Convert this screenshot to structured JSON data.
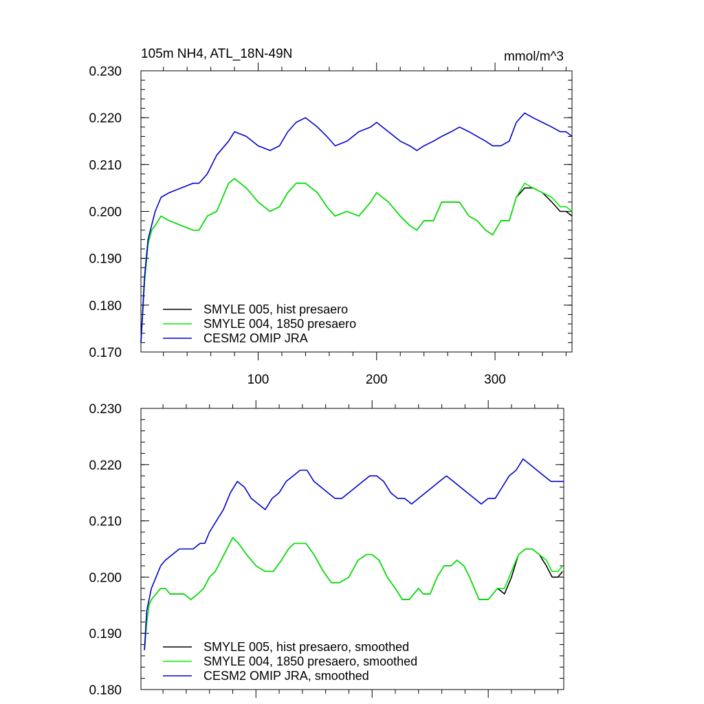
{
  "figure": {
    "title_left": "105m NH4, ATL_18N-49N",
    "title_right": "mmol/m^3"
  },
  "chart_data": [
    {
      "type": "line",
      "title": "105m NH4, ATL_18N-49N",
      "units": "mmol/m^3",
      "xlabel": "",
      "ylabel": "",
      "xlim": [
        1,
        365
      ],
      "ylim": [
        0.17,
        0.23
      ],
      "x_ticks": [
        100,
        200,
        300
      ],
      "x_tick_labels": [
        "100",
        "200",
        "300"
      ],
      "y_ticks": [
        0.17,
        0.18,
        0.19,
        0.2,
        0.21,
        0.22,
        0.23
      ],
      "y_tick_labels": [
        "0.170",
        "0.180",
        "0.190",
        "0.200",
        "0.210",
        "0.220",
        "0.230"
      ],
      "legend_position": "bottom-left",
      "grid": false,
      "series": [
        {
          "name": "SMYLE 005, hist presaero",
          "color": "#000000",
          "x": [
            1,
            4,
            7,
            10,
            13,
            18,
            25,
            35,
            45,
            50,
            57,
            65,
            75,
            80,
            90,
            100,
            110,
            118,
            125,
            132,
            140,
            150,
            158,
            165,
            175,
            185,
            195,
            200,
            210,
            220,
            228,
            234,
            240,
            248,
            255,
            263,
            270,
            278,
            285,
            292,
            298,
            305,
            312,
            318,
            325,
            332,
            340,
            348,
            355,
            360,
            365
          ],
          "values": [
            0.172,
            0.185,
            0.193,
            0.196,
            0.197,
            0.199,
            0.198,
            0.197,
            0.196,
            0.196,
            0.199,
            0.2,
            0.206,
            0.207,
            0.205,
            0.202,
            0.2,
            0.201,
            0.204,
            0.206,
            0.206,
            0.204,
            0.201,
            0.199,
            0.2,
            0.199,
            0.202,
            0.204,
            0.202,
            0.199,
            0.197,
            0.196,
            0.198,
            0.198,
            0.202,
            0.202,
            0.202,
            0.199,
            0.198,
            0.196,
            0.195,
            0.198,
            0.198,
            0.203,
            0.205,
            0.205,
            0.204,
            0.202,
            0.2,
            0.2,
            0.199
          ]
        },
        {
          "name": "SMYLE 004, 1850 presaero",
          "color": "#00ee00",
          "x": [
            1,
            4,
            7,
            10,
            13,
            18,
            25,
            35,
            45,
            50,
            57,
            65,
            75,
            80,
            90,
            100,
            110,
            118,
            125,
            132,
            140,
            150,
            158,
            165,
            175,
            185,
            195,
            200,
            210,
            220,
            228,
            234,
            240,
            248,
            255,
            263,
            270,
            278,
            285,
            292,
            298,
            305,
            312,
            318,
            325,
            332,
            340,
            348,
            355,
            360,
            365
          ],
          "values": [
            0.172,
            0.185,
            0.193,
            0.196,
            0.197,
            0.199,
            0.198,
            0.197,
            0.196,
            0.196,
            0.199,
            0.2,
            0.206,
            0.207,
            0.205,
            0.202,
            0.2,
            0.201,
            0.204,
            0.206,
            0.206,
            0.204,
            0.201,
            0.199,
            0.2,
            0.199,
            0.202,
            0.204,
            0.202,
            0.199,
            0.197,
            0.196,
            0.198,
            0.198,
            0.202,
            0.202,
            0.202,
            0.199,
            0.198,
            0.196,
            0.195,
            0.198,
            0.198,
            0.203,
            0.206,
            0.205,
            0.204,
            0.203,
            0.201,
            0.201,
            0.2
          ]
        },
        {
          "name": "CESM2 OMIP JRA",
          "color": "#0000cc",
          "x": [
            1,
            4,
            7,
            10,
            13,
            18,
            25,
            35,
            45,
            50,
            57,
            65,
            75,
            80,
            90,
            100,
            110,
            118,
            125,
            132,
            140,
            150,
            158,
            165,
            175,
            185,
            195,
            200,
            210,
            220,
            228,
            234,
            240,
            248,
            255,
            263,
            270,
            278,
            285,
            292,
            298,
            305,
            312,
            318,
            325,
            332,
            340,
            348,
            355,
            360,
            365
          ],
          "values": [
            0.172,
            0.186,
            0.194,
            0.197,
            0.2,
            0.203,
            0.204,
            0.205,
            0.206,
            0.206,
            0.208,
            0.212,
            0.215,
            0.217,
            0.216,
            0.214,
            0.213,
            0.214,
            0.217,
            0.219,
            0.22,
            0.218,
            0.216,
            0.214,
            0.215,
            0.217,
            0.218,
            0.219,
            0.217,
            0.215,
            0.214,
            0.213,
            0.214,
            0.215,
            0.216,
            0.217,
            0.218,
            0.217,
            0.216,
            0.215,
            0.214,
            0.214,
            0.215,
            0.219,
            0.221,
            0.22,
            0.219,
            0.218,
            0.217,
            0.217,
            0.216
          ]
        }
      ]
    },
    {
      "type": "line",
      "title": "",
      "xlabel": "",
      "ylabel": "",
      "xlim": [
        1,
        365
      ],
      "ylim": [
        0.18,
        0.23
      ],
      "x_ticks": [
        100,
        200,
        300
      ],
      "x_tick_labels": [],
      "y_ticks": [
        0.18,
        0.19,
        0.2,
        0.21,
        0.22,
        0.23
      ],
      "y_tick_labels": [
        "0.180",
        "0.190",
        "0.200",
        "0.210",
        "0.220",
        "0.230"
      ],
      "legend_position": "bottom-left",
      "grid": false,
      "series": [
        {
          "name": "SMYLE 005, hist presaero, smoothed",
          "color": "#000000",
          "x": [
            4,
            6,
            8,
            10,
            14,
            18,
            22,
            26,
            32,
            38,
            44,
            50,
            55,
            60,
            65,
            70,
            75,
            80,
            85,
            92,
            100,
            108,
            115,
            122,
            128,
            133,
            138,
            143,
            150,
            158,
            165,
            172,
            180,
            188,
            195,
            200,
            206,
            213,
            220,
            226,
            232,
            236,
            240,
            244,
            250,
            256,
            262,
            268,
            273,
            279,
            284,
            288,
            292,
            296,
            300,
            304,
            308,
            314,
            320,
            326,
            332,
            338,
            344,
            350,
            355,
            360,
            364
          ],
          "values": [
            0.187,
            0.192,
            0.195,
            0.196,
            0.197,
            0.198,
            0.198,
            0.197,
            0.197,
            0.197,
            0.196,
            0.197,
            0.198,
            0.2,
            0.201,
            0.203,
            0.205,
            0.207,
            0.206,
            0.204,
            0.202,
            0.201,
            0.201,
            0.203,
            0.205,
            0.206,
            0.206,
            0.206,
            0.204,
            0.201,
            0.199,
            0.199,
            0.2,
            0.203,
            0.204,
            0.204,
            0.203,
            0.2,
            0.198,
            0.196,
            0.196,
            0.197,
            0.198,
            0.197,
            0.197,
            0.2,
            0.202,
            0.202,
            0.203,
            0.202,
            0.2,
            0.198,
            0.196,
            0.196,
            0.196,
            0.197,
            0.198,
            0.197,
            0.2,
            0.204,
            0.205,
            0.205,
            0.204,
            0.202,
            0.2,
            0.2,
            0.201
          ]
        },
        {
          "name": "SMYLE 004, 1850 presaero, smoothed",
          "color": "#00ee00",
          "x": [
            4,
            6,
            8,
            10,
            14,
            18,
            22,
            26,
            32,
            38,
            44,
            50,
            55,
            60,
            65,
            70,
            75,
            80,
            85,
            92,
            100,
            108,
            115,
            122,
            128,
            133,
            138,
            143,
            150,
            158,
            165,
            172,
            180,
            188,
            195,
            200,
            206,
            213,
            220,
            226,
            232,
            236,
            240,
            244,
            250,
            256,
            262,
            268,
            273,
            279,
            284,
            288,
            292,
            296,
            300,
            304,
            308,
            314,
            320,
            326,
            332,
            338,
            344,
            350,
            355,
            360,
            364
          ],
          "values": [
            0.187,
            0.192,
            0.195,
            0.196,
            0.197,
            0.198,
            0.198,
            0.197,
            0.197,
            0.197,
            0.196,
            0.197,
            0.198,
            0.2,
            0.201,
            0.203,
            0.205,
            0.207,
            0.206,
            0.204,
            0.202,
            0.201,
            0.201,
            0.203,
            0.205,
            0.206,
            0.206,
            0.206,
            0.204,
            0.201,
            0.199,
            0.199,
            0.2,
            0.203,
            0.204,
            0.204,
            0.203,
            0.2,
            0.198,
            0.196,
            0.196,
            0.197,
            0.198,
            0.197,
            0.197,
            0.2,
            0.202,
            0.202,
            0.203,
            0.202,
            0.2,
            0.198,
            0.196,
            0.196,
            0.196,
            0.197,
            0.198,
            0.198,
            0.201,
            0.204,
            0.205,
            0.205,
            0.204,
            0.203,
            0.201,
            0.201,
            0.202
          ]
        },
        {
          "name": "CESM2 OMIP JRA, smoothed",
          "color": "#0000cc",
          "x": [
            4,
            6,
            8,
            10,
            14,
            18,
            22,
            28,
            34,
            40,
            46,
            52,
            56,
            60,
            66,
            72,
            78,
            84,
            90,
            96,
            102,
            108,
            114,
            120,
            126,
            132,
            138,
            144,
            150,
            156,
            162,
            168,
            174,
            180,
            186,
            192,
            198,
            204,
            210,
            216,
            222,
            228,
            234,
            240,
            246,
            252,
            258,
            264,
            270,
            276,
            282,
            288,
            294,
            300,
            306,
            312,
            318,
            324,
            330,
            336,
            342,
            348,
            354,
            358,
            362,
            365
          ],
          "values": [
            0.187,
            0.194,
            0.196,
            0.198,
            0.2,
            0.202,
            0.203,
            0.204,
            0.205,
            0.205,
            0.205,
            0.206,
            0.206,
            0.208,
            0.21,
            0.212,
            0.215,
            0.217,
            0.216,
            0.214,
            0.213,
            0.212,
            0.214,
            0.215,
            0.217,
            0.218,
            0.219,
            0.219,
            0.217,
            0.216,
            0.215,
            0.214,
            0.214,
            0.215,
            0.216,
            0.217,
            0.218,
            0.218,
            0.217,
            0.215,
            0.214,
            0.214,
            0.213,
            0.214,
            0.215,
            0.216,
            0.217,
            0.218,
            0.217,
            0.216,
            0.215,
            0.214,
            0.213,
            0.214,
            0.214,
            0.216,
            0.218,
            0.219,
            0.221,
            0.22,
            0.219,
            0.218,
            0.217,
            0.217,
            0.217,
            0.217
          ]
        }
      ]
    }
  ]
}
